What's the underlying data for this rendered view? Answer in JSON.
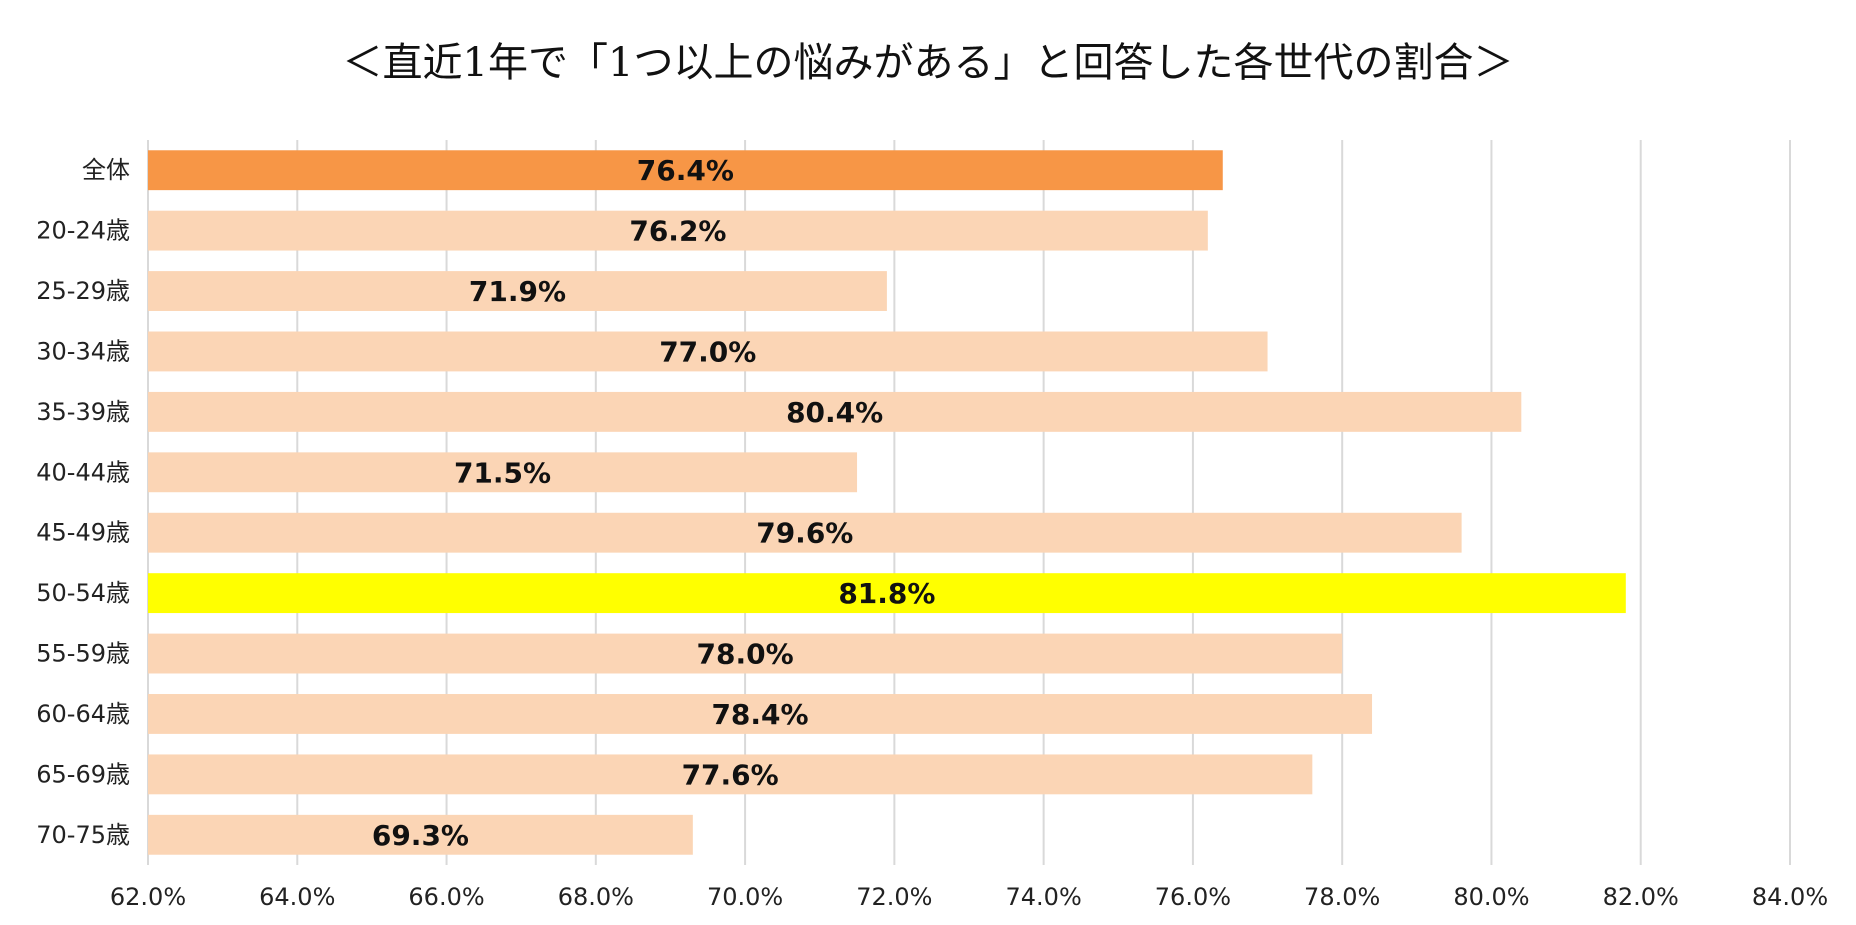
{
  "chart_data": {
    "type": "bar",
    "orientation": "horizontal",
    "title": "＜直近1年で「1つ以上の悩みがある」と回答した各世代の割合＞",
    "xlabel": "",
    "ylabel": "",
    "xlim": [
      62.0,
      84.0
    ],
    "xticks": [
      "62.0%",
      "64.0%",
      "66.0%",
      "68.0%",
      "70.0%",
      "72.0%",
      "74.0%",
      "76.0%",
      "78.0%",
      "80.0%",
      "82.0%",
      "84.0%"
    ],
    "grid": "vertical",
    "categories": [
      "全体",
      "20-24歳",
      "25-29歳",
      "30-34歳",
      "35-39歳",
      "40-44歳",
      "45-49歳",
      "50-54歳",
      "55-59歳",
      "60-64歳",
      "65-69歳",
      "70-75歳"
    ],
    "values": [
      76.4,
      76.2,
      71.9,
      77.0,
      80.4,
      71.5,
      79.6,
      81.8,
      78.0,
      78.4,
      77.6,
      69.3
    ],
    "data_labels": [
      "76.4%",
      "76.2%",
      "71.9%",
      "77.0%",
      "80.4%",
      "71.5%",
      "79.6%",
      "81.8%",
      "78.0%",
      "78.4%",
      "77.6%",
      "69.3%"
    ],
    "colors": {
      "default": "#fbd5b5",
      "highlight_total": "#f79646",
      "highlight_max": "#ffff00",
      "gridline": "#d9d9d9"
    },
    "bar_colors": [
      "#f79646",
      "#fbd5b5",
      "#fbd5b5",
      "#fbd5b5",
      "#fbd5b5",
      "#fbd5b5",
      "#fbd5b5",
      "#ffff00",
      "#fbd5b5",
      "#fbd5b5",
      "#fbd5b5",
      "#fbd5b5"
    ]
  }
}
